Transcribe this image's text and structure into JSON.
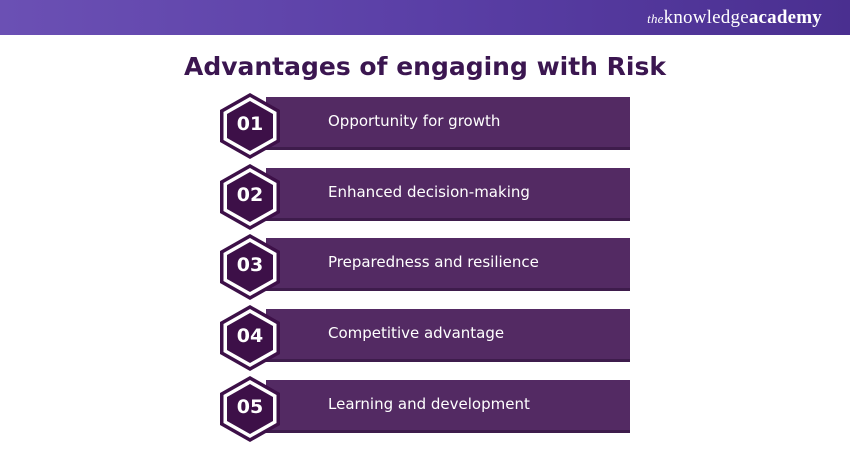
{
  "header": {
    "logo_the": "the",
    "logo_knowledge": "knowledge",
    "logo_academy": "academy"
  },
  "title": "Advantages of engaging with Risk",
  "colors": {
    "bar": "#532a63",
    "hex": "#3d1048",
    "title": "#3b1650",
    "header": "#5a3fa6"
  },
  "items": [
    {
      "num": "01",
      "label": "Opportunity for growth"
    },
    {
      "num": "02",
      "label": "Enhanced decision-making"
    },
    {
      "num": "03",
      "label": "Preparedness and resilience"
    },
    {
      "num": "04",
      "label": "Competitive advantage"
    },
    {
      "num": "05",
      "label": "Learning and development"
    }
  ]
}
